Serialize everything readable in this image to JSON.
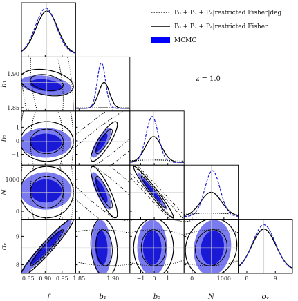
{
  "chart_data": {
    "type": "corner",
    "annotation": "z = 1.0",
    "parameters": [
      {
        "key": "f",
        "label": "f",
        "ticks": [
          0.85,
          0.9,
          0.95
        ],
        "tick_labels": [
          "0.85",
          "0.90",
          "0.95"
        ],
        "range": [
          0.83,
          0.99
        ],
        "fiducial": 0.905,
        "sigma": {
          "fisher_deg": 0.032,
          "fisher": 0.032,
          "mcmc": 0.031
        },
        "mean": {
          "fisher_deg": 0.905,
          "fisher": 0.905,
          "mcmc": 0.902
        }
      },
      {
        "key": "b1",
        "label": "b₁",
        "ticks": [
          1.85,
          1.9
        ],
        "tick_labels": [
          "1.85",
          "1.90"
        ],
        "range": [
          1.845,
          1.925
        ],
        "fiducial": 1.887,
        "sigma": {
          "fisher_deg": 0.05,
          "fisher": 0.008,
          "mcmc": 0.006
        },
        "mean": {
          "fisher_deg": 1.887,
          "fisher": 1.887,
          "mcmc": 1.883
        }
      },
      {
        "key": "b2",
        "label": "b₂",
        "ticks": [
          -1,
          0,
          1
        ],
        "tick_labels": [
          "−1",
          "0",
          "1"
        ],
        "range": [
          -1.8,
          2.2
        ],
        "fiducial": -0.05,
        "sigma": {
          "fisher_deg": 2.0,
          "fisher": 0.6,
          "mcmc": 0.45
        },
        "mean": {
          "fisher_deg": -0.05,
          "fisher": -0.05,
          "mcmc": -0.15
        }
      },
      {
        "key": "N",
        "label": "N",
        "ticks": [
          0,
          1000
        ],
        "tick_labels": [
          "0",
          "1000"
        ],
        "range": [
          -250,
          1450
        ],
        "fiducial": 600,
        "sigma": {
          "fisher_deg": 900,
          "fisher": 330,
          "mcmc": 240
        },
        "mean": {
          "fisher_deg": 600,
          "fisher": 600,
          "mcmc": 640
        }
      },
      {
        "key": "sv",
        "label": "σᵥ",
        "ticks": [
          8,
          9
        ],
        "tick_labels": [
          "8",
          "9"
        ],
        "range": [
          7.7,
          9.6
        ],
        "fiducial": 8.6,
        "sigma": {
          "fisher_deg": 0.42,
          "fisher": 0.42,
          "mcmc": 0.4
        },
        "mean": {
          "fisher_deg": 8.6,
          "fisher": 8.6,
          "mcmc": 8.6
        }
      }
    ],
    "correlations": {
      "1_0": {
        "fisher_deg": -0.35,
        "fisher": -0.3,
        "mcmc": -0.3
      },
      "2_0": {
        "fisher_deg": 0.0,
        "fisher": 0.0,
        "mcmc": 0.0
      },
      "2_1": {
        "fisher_deg": 0.9,
        "fisher": 0.85,
        "mcmc": 0.8
      },
      "3_0": {
        "fisher_deg": 0.0,
        "fisher": 0.0,
        "mcmc": 0.0
      },
      "3_1": {
        "fisher_deg": -0.9,
        "fisher": -0.85,
        "mcmc": -0.8
      },
      "3_2": {
        "fisher_deg": -0.99,
        "fisher": -0.97,
        "mcmc": -0.97
      },
      "4_0": {
        "fisher_deg": 0.97,
        "fisher": 0.96,
        "mcmc": 0.96
      },
      "4_1": {
        "fisher_deg": -0.1,
        "fisher": -0.15,
        "mcmc": -0.1
      },
      "4_2": {
        "fisher_deg": 0.0,
        "fisher": 0.0,
        "mcmc": 0.0
      },
      "4_3": {
        "fisher_deg": 0.1,
        "fisher": 0.1,
        "mcmc": 0.1
      }
    },
    "series": [
      {
        "name": "P₀ + P₂ + P₄|restricted Fisher|deg",
        "key": "fisher_deg",
        "style": "dotted",
        "color": "#000000"
      },
      {
        "name": "P₀ + P₂ + P₄|restricted Fisher",
        "key": "fisher",
        "style": "solid",
        "color": "#000000"
      },
      {
        "name": "MCMC",
        "key": "mcmc",
        "style": "filled",
        "color": "#0000ff",
        "fill_outer": "#7b7bf0",
        "fill_inner": "#1a1ad6",
        "line_1d": "#1a1ad6"
      }
    ],
    "legend_position": "top-right",
    "grid": false
  }
}
